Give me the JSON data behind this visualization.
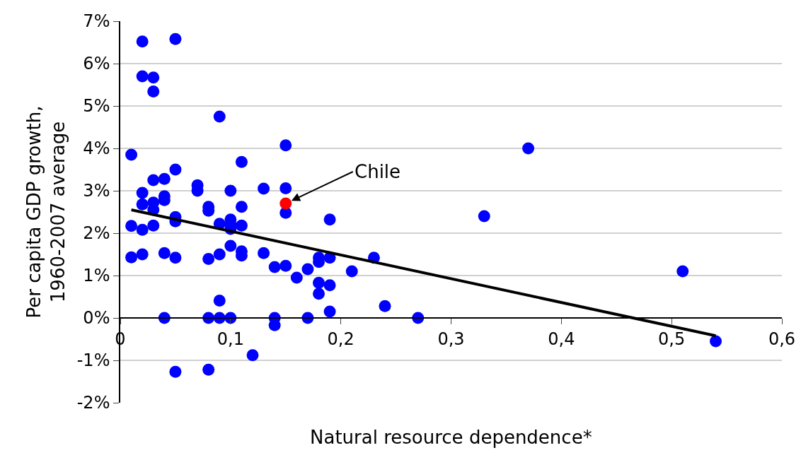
{
  "chart_data": {
    "type": "scatter",
    "xlabel": "Natural resource dependence*",
    "ylabel": "Per capita GDP growth,\n1960-2007 average",
    "xlim": [
      0,
      0.6
    ],
    "xticks": [
      {
        "value": 0,
        "label": "0"
      },
      {
        "value": 0.1,
        "label": "0,1"
      },
      {
        "value": 0.2,
        "label": "0,2"
      },
      {
        "value": 0.3,
        "label": "0,3"
      },
      {
        "value": 0.4,
        "label": "0,4"
      },
      {
        "value": 0.5,
        "label": "0,5"
      },
      {
        "value": 0.6,
        "label": "0,6"
      }
    ],
    "ylim": [
      -2,
      7
    ],
    "yticks": [
      {
        "value": -2,
        "label": "-2%"
      },
      {
        "value": -1,
        "label": "-1%"
      },
      {
        "value": 0,
        "label": "0%"
      },
      {
        "value": 1,
        "label": "1%"
      },
      {
        "value": 2,
        "label": "2%"
      },
      {
        "value": 3,
        "label": "3%"
      },
      {
        "value": 4,
        "label": "4%"
      },
      {
        "value": 5,
        "label": "5%"
      },
      {
        "value": 6,
        "label": "6%"
      },
      {
        "value": 7,
        "label": "7%"
      }
    ],
    "grid": "y",
    "marker": "circle",
    "series": [
      {
        "color": "#0000ff",
        "x": [
          0.01,
          0.02,
          0.05,
          0.02,
          0.03,
          0.03,
          0.09,
          0.15,
          0.37,
          0.11,
          0.05,
          0.03,
          0.04,
          0.07,
          0.07,
          0.1,
          0.13,
          0.15,
          0.02,
          0.04,
          0.02,
          0.03,
          0.04,
          0.03,
          0.08,
          0.08,
          0.11,
          0.15,
          0.33,
          0.05,
          0.05,
          0.19,
          0.09,
          0.1,
          0.1,
          0.11,
          0.1,
          0.01,
          0.02,
          0.03,
          0.1,
          0.11,
          0.11,
          0.13,
          0.01,
          0.02,
          0.04,
          0.05,
          0.08,
          0.09,
          0.14,
          0.15,
          0.17,
          0.16,
          0.18,
          0.18,
          0.19,
          0.23,
          0.21,
          0.51,
          0.18,
          0.19,
          0.18,
          0.09,
          0.24,
          0.19,
          0.04,
          0.08,
          0.09,
          0.1,
          0.14,
          0.17,
          0.27,
          0.14,
          0.12,
          0.05,
          0.08,
          0.54
        ],
        "values": [
          3.85,
          6.52,
          6.58,
          5.7,
          5.67,
          5.34,
          4.75,
          4.07,
          4.0,
          3.68,
          3.5,
          3.25,
          3.28,
          3.13,
          3.0,
          3.0,
          3.05,
          3.06,
          2.95,
          2.87,
          2.68,
          2.72,
          2.78,
          2.55,
          2.62,
          2.53,
          2.62,
          2.48,
          2.4,
          2.38,
          2.28,
          2.32,
          2.22,
          2.32,
          2.2,
          2.18,
          2.1,
          2.17,
          2.08,
          2.18,
          1.7,
          1.57,
          1.47,
          1.53,
          1.43,
          1.5,
          1.53,
          1.42,
          1.39,
          1.5,
          1.2,
          1.23,
          1.15,
          0.95,
          1.32,
          1.42,
          1.42,
          1.42,
          1.1,
          1.1,
          0.83,
          0.77,
          0.57,
          0.41,
          0.28,
          0.15,
          0,
          0,
          0,
          0,
          0,
          0,
          0,
          -0.17,
          -0.88,
          -1.27,
          -1.22,
          -0.55
        ]
      },
      {
        "color": "#ff0000",
        "x": [
          0.15
        ],
        "values": [
          2.7
        ]
      },
      {
        "type": "line",
        "color": "#000000",
        "marker": "none",
        "x": [
          0.01,
          0.54
        ],
        "values": [
          2.55,
          -0.42
        ]
      }
    ],
    "annotations": [
      {
        "text": "Chile",
        "x": 0.15,
        "y": 2.7
      }
    ]
  }
}
